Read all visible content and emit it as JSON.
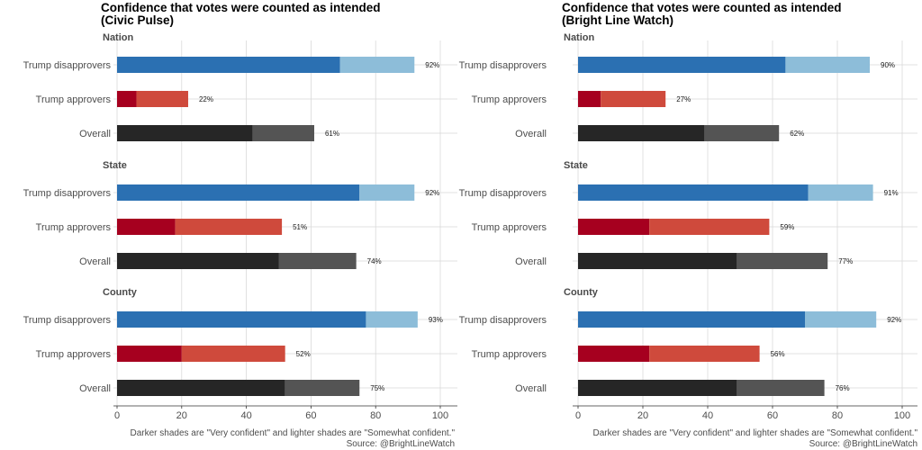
{
  "chart_data": [
    {
      "type": "bar",
      "orientation": "horizontal",
      "stacked": true,
      "title": "Confidence that votes were counted as intended\n(Civic Pulse)",
      "categories": [
        "Trump disapprovers",
        "Trump approvers",
        "Overall"
      ],
      "xlim": [
        0,
        100
      ],
      "xticks": [
        0,
        20,
        40,
        60,
        80,
        100
      ],
      "grid": true,
      "colors": {
        "Trump disapprovers": {
          "very": "#2b70b2",
          "somewhat": "#8dbdd9"
        },
        "Trump approvers": {
          "very": "#a6001f",
          "somewhat": "#cf4a3c"
        },
        "Overall": {
          "very": "#262626",
          "somewhat": "#545454"
        }
      },
      "facets": [
        {
          "name": "Nation",
          "rows": [
            {
              "category": "Trump disapprovers",
              "very": 69,
              "total": 92,
              "label": "92%"
            },
            {
              "category": "Trump approvers",
              "very": 6,
              "total": 22,
              "label": "22%"
            },
            {
              "category": "Overall",
              "very": 42,
              "total": 61,
              "label": "61%"
            }
          ]
        },
        {
          "name": "State",
          "rows": [
            {
              "category": "Trump disapprovers",
              "very": 75,
              "total": 92,
              "label": "92%"
            },
            {
              "category": "Trump approvers",
              "very": 18,
              "total": 51,
              "label": "51%"
            },
            {
              "category": "Overall",
              "very": 50,
              "total": 74,
              "label": "74%"
            }
          ]
        },
        {
          "name": "County",
          "rows": [
            {
              "category": "Trump disapprovers",
              "very": 77,
              "total": 93,
              "label": "93%"
            },
            {
              "category": "Trump approvers",
              "very": 20,
              "total": 52,
              "label": "52%"
            },
            {
              "category": "Overall",
              "very": 52,
              "total": 75,
              "label": "75%"
            }
          ]
        }
      ],
      "caption": [
        "Darker shades are \"Very confident\" and lighter shades are \"Somewhat confident.\"",
        "Source: @BrightLineWatch"
      ]
    },
    {
      "type": "bar",
      "orientation": "horizontal",
      "stacked": true,
      "title": "Confidence that votes were counted as intended\n(Bright Line Watch)",
      "categories": [
        "Trump disapprovers",
        "Trump approvers",
        "Overall"
      ],
      "xlim": [
        0,
        100
      ],
      "xticks": [
        0,
        20,
        40,
        60,
        80,
        100
      ],
      "grid": true,
      "colors": {
        "Trump disapprovers": {
          "very": "#2b70b2",
          "somewhat": "#8dbdd9"
        },
        "Trump approvers": {
          "very": "#a6001f",
          "somewhat": "#cf4a3c"
        },
        "Overall": {
          "very": "#262626",
          "somewhat": "#545454"
        }
      },
      "facets": [
        {
          "name": "Nation",
          "rows": [
            {
              "category": "Trump disapprovers",
              "very": 64,
              "total": 90,
              "label": "90%"
            },
            {
              "category": "Trump approvers",
              "very": 7,
              "total": 27,
              "label": "27%"
            },
            {
              "category": "Overall",
              "very": 39,
              "total": 62,
              "label": "62%"
            }
          ]
        },
        {
          "name": "State",
          "rows": [
            {
              "category": "Trump disapprovers",
              "very": 71,
              "total": 91,
              "label": "91%"
            },
            {
              "category": "Trump approvers",
              "very": 22,
              "total": 59,
              "label": "59%"
            },
            {
              "category": "Overall",
              "very": 49,
              "total": 77,
              "label": "77%"
            }
          ]
        },
        {
          "name": "County",
          "rows": [
            {
              "category": "Trump disapprovers",
              "very": 70,
              "total": 92,
              "label": "92%"
            },
            {
              "category": "Trump approvers",
              "very": 22,
              "total": 56,
              "label": "56%"
            },
            {
              "category": "Overall",
              "very": 49,
              "total": 76,
              "label": "76%"
            }
          ]
        }
      ],
      "caption": [
        "Darker shades are \"Very confident\" and lighter shades are \"Somewhat confident.\"",
        "Source: @BrightLineWatch"
      ]
    }
  ]
}
